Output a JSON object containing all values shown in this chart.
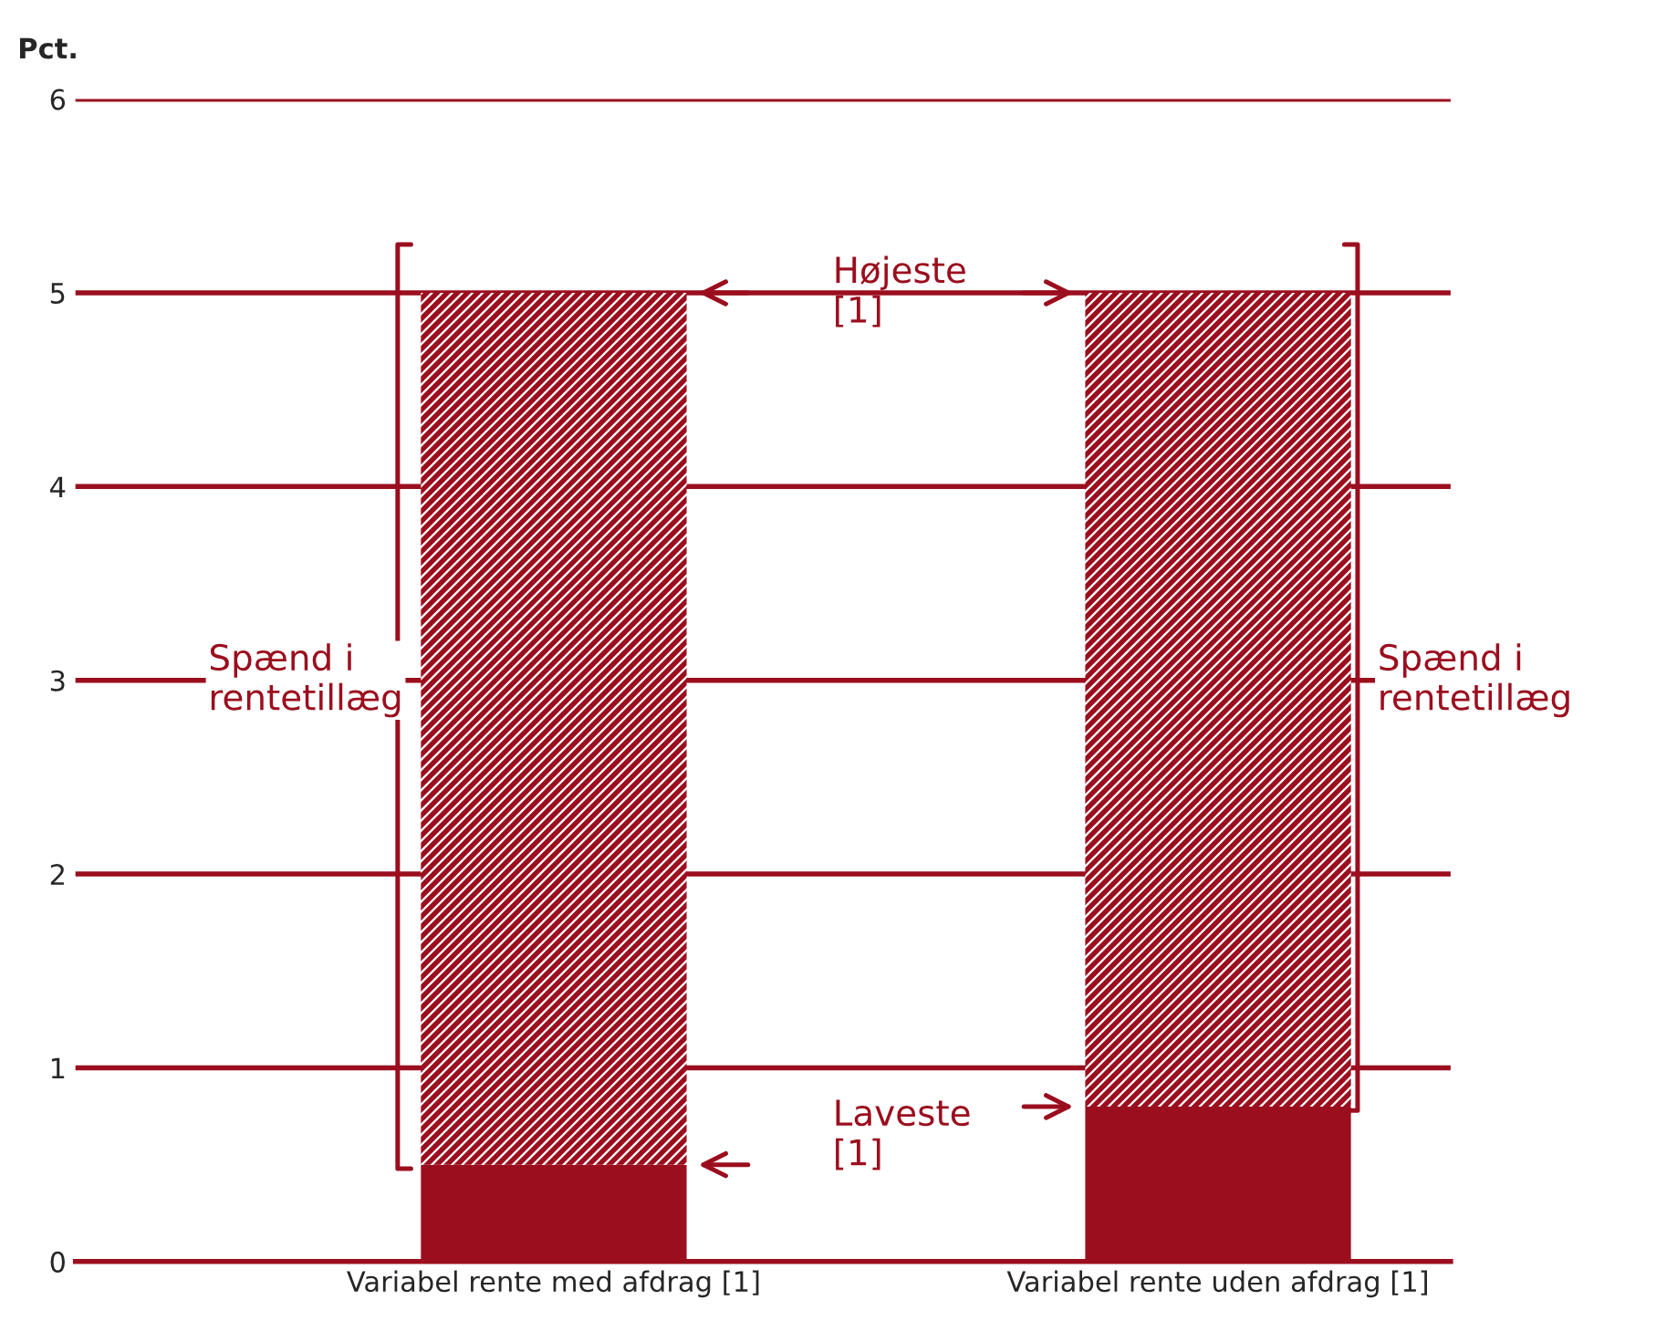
{
  "chart_data": {
    "type": "bar",
    "ylabel": "Pct.",
    "stacked": true,
    "categories": [
      "Variabel rente med afdrag [1]",
      "Variabel rente uden afdrag [1]"
    ],
    "series": [
      {
        "color": "#9b0e1e",
        "values": [
          0.5,
          0.8
        ]
      },
      {
        "color": "#9b0e1e",
        "values": [
          4.5,
          4.2
        ]
      }
    ],
    "ylim": [
      0,
      6
    ],
    "yticks": [
      0,
      1,
      2,
      3,
      4,
      5,
      6
    ],
    "grid": "y",
    "legend": false,
    "annotations": [
      "Højeste\n[1]",
      "Laveste\n[1]",
      "Spænd i\nrentetillæg",
      "Spænd i\nrentetillæg"
    ]
  }
}
